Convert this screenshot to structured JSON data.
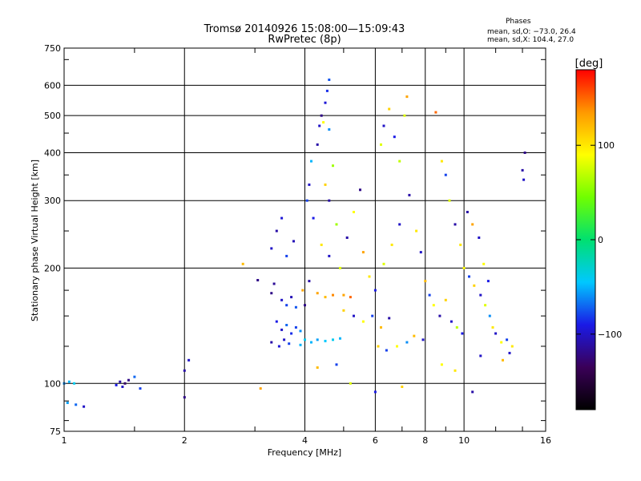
{
  "chart_data": {
    "type": "scatter",
    "title_line1": "Tromsø 20140926 15:08:00—15:09:43",
    "title_line2": "RwPretec (8p)",
    "xlabel": "Frequency [MHz]",
    "ylabel": "Stationary phase Virtual Height [km]",
    "x_scale": "log",
    "y_scale": "log",
    "xlim": [
      1,
      16
    ],
    "ylim": [
      75,
      750
    ],
    "x_ticks": [
      1,
      2,
      4,
      6,
      8,
      10,
      16
    ],
    "x_tick_labels": [
      "1",
      "2",
      "4",
      "6",
      "8",
      "10",
      "16"
    ],
    "y_ticks": [
      75,
      100,
      200,
      300,
      400,
      500,
      600,
      750
    ],
    "y_tick_labels": [
      "75",
      "100",
      "200",
      "300",
      "400",
      "500",
      "600",
      "750"
    ],
    "grid": true,
    "colorbar": {
      "label": "[deg]",
      "range": [
        -180,
        180
      ],
      "ticks": [
        100,
        0,
        -100
      ],
      "tick_labels": [
        "100",
        "0",
        "−100"
      ],
      "colors": [
        "#000000",
        "#3a0058",
        "#1a1ae6",
        "#00c8ff",
        "#00e070",
        "#70ff00",
        "#ffff00",
        "#ff9900",
        "#ff0000"
      ]
    },
    "phases": {
      "title": "Phases",
      "line_o": "mean, sd,O: −73.0, 26.4",
      "line_x": "mean, sd,X: 104.4, 27.0"
    },
    "series": [
      {
        "points": [
          [
            1.0,
            100,
            -60
          ],
          [
            1.03,
            101,
            -50
          ],
          [
            1.06,
            100,
            -40
          ],
          [
            1.02,
            89,
            -55
          ],
          [
            1.07,
            88,
            -70
          ],
          [
            1.12,
            87,
            -100
          ],
          [
            1.35,
            99,
            -90
          ],
          [
            1.38,
            101,
            -110
          ],
          [
            1.42,
            100,
            -130
          ],
          [
            1.45,
            102,
            -120
          ],
          [
            1.4,
            98,
            -100
          ],
          [
            1.5,
            104,
            -70
          ],
          [
            1.55,
            97,
            -80
          ],
          [
            2.0,
            108,
            -110
          ],
          [
            2.0,
            92,
            -120
          ],
          [
            2.05,
            115,
            -100
          ],
          [
            2.8,
            205,
            120
          ],
          [
            3.05,
            186,
            -120
          ],
          [
            3.3,
            172,
            -120
          ],
          [
            3.35,
            182,
            -115
          ],
          [
            3.5,
            165,
            -100
          ],
          [
            3.6,
            160,
            -80
          ],
          [
            3.7,
            168,
            -105
          ],
          [
            3.8,
            158,
            -75
          ],
          [
            3.4,
            145,
            -90
          ],
          [
            3.5,
            138,
            -100
          ],
          [
            3.6,
            142,
            -70
          ],
          [
            3.7,
            135,
            -85
          ],
          [
            3.8,
            140,
            -80
          ],
          [
            3.9,
            137,
            -60
          ],
          [
            3.3,
            128,
            -110
          ],
          [
            3.45,
            125,
            -95
          ],
          [
            3.55,
            130,
            -100
          ],
          [
            3.65,
            127,
            -80
          ],
          [
            3.9,
            126,
            -50
          ],
          [
            3.3,
            225,
            -100
          ],
          [
            3.4,
            250,
            -110
          ],
          [
            3.5,
            270,
            -95
          ],
          [
            3.6,
            215,
            -80
          ],
          [
            3.75,
            235,
            -105
          ],
          [
            3.95,
            175,
            130
          ],
          [
            4.0,
            160,
            -120
          ],
          [
            4.05,
            300,
            -80
          ],
          [
            4.1,
            330,
            -100
          ],
          [
            4.15,
            380,
            -50
          ],
          [
            4.2,
            270,
            -90
          ],
          [
            4.0,
            130,
            -40
          ],
          [
            4.15,
            128,
            -50
          ],
          [
            4.3,
            130,
            -55
          ],
          [
            4.5,
            129,
            -45
          ],
          [
            4.7,
            130,
            -40
          ],
          [
            4.9,
            131,
            -50
          ],
          [
            4.1,
            185,
            -110
          ],
          [
            4.3,
            172,
            130
          ],
          [
            4.5,
            168,
            120
          ],
          [
            4.7,
            170,
            140
          ],
          [
            5.0,
            170,
            130
          ],
          [
            5.2,
            168,
            150
          ],
          [
            4.3,
            420,
            -110
          ],
          [
            4.35,
            470,
            -100
          ],
          [
            4.4,
            500,
            -120
          ],
          [
            4.5,
            540,
            -95
          ],
          [
            4.55,
            580,
            -85
          ],
          [
            4.6,
            620,
            -75
          ],
          [
            4.45,
            480,
            90
          ],
          [
            4.6,
            460,
            -60
          ],
          [
            4.7,
            370,
            60
          ],
          [
            4.5,
            330,
            110
          ],
          [
            4.6,
            300,
            -110
          ],
          [
            4.8,
            260,
            60
          ],
          [
            4.4,
            230,
            100
          ],
          [
            4.6,
            215,
            -100
          ],
          [
            4.9,
            200,
            80
          ],
          [
            5.1,
            240,
            -110
          ],
          [
            5.3,
            280,
            90
          ],
          [
            5.5,
            320,
            -120
          ],
          [
            5.0,
            155,
            110
          ],
          [
            5.3,
            150,
            -100
          ],
          [
            5.6,
            145,
            90
          ],
          [
            5.9,
            150,
            -80
          ],
          [
            6.2,
            140,
            120
          ],
          [
            6.5,
            148,
            -110
          ],
          [
            5.6,
            220,
            130
          ],
          [
            5.8,
            190,
            100
          ],
          [
            6.0,
            175,
            -90
          ],
          [
            6.3,
            205,
            80
          ],
          [
            6.6,
            230,
            100
          ],
          [
            6.9,
            260,
            -100
          ],
          [
            6.1,
            125,
            110
          ],
          [
            6.4,
            122,
            -80
          ],
          [
            6.8,
            125,
            90
          ],
          [
            7.2,
            128,
            -60
          ],
          [
            7.5,
            133,
            120
          ],
          [
            7.9,
            130,
            -100
          ],
          [
            6.2,
            420,
            80
          ],
          [
            6.3,
            470,
            -100
          ],
          [
            6.5,
            520,
            110
          ],
          [
            6.7,
            440,
            -90
          ],
          [
            6.9,
            380,
            70
          ],
          [
            7.1,
            500,
            80
          ],
          [
            7.2,
            560,
            130
          ],
          [
            7.3,
            310,
            -110
          ],
          [
            7.6,
            250,
            100
          ],
          [
            7.8,
            220,
            -100
          ],
          [
            8.0,
            185,
            120
          ],
          [
            8.2,
            170,
            -80
          ],
          [
            8.4,
            160,
            90
          ],
          [
            8.7,
            150,
            -110
          ],
          [
            9.0,
            165,
            110
          ],
          [
            9.3,
            145,
            -100
          ],
          [
            9.6,
            140,
            70
          ],
          [
            9.9,
            135,
            -90
          ],
          [
            8.5,
            510,
            150
          ],
          [
            8.8,
            380,
            100
          ],
          [
            9.0,
            350,
            -80
          ],
          [
            9.2,
            300,
            80
          ],
          [
            9.5,
            260,
            -110
          ],
          [
            9.8,
            230,
            100
          ],
          [
            10.0,
            200,
            90
          ],
          [
            10.3,
            190,
            -80
          ],
          [
            10.6,
            180,
            110
          ],
          [
            11.0,
            170,
            -100
          ],
          [
            11.3,
            160,
            80
          ],
          [
            11.6,
            150,
            -60
          ],
          [
            10.2,
            280,
            -110
          ],
          [
            10.5,
            260,
            130
          ],
          [
            10.9,
            240,
            -100
          ],
          [
            11.2,
            205,
            90
          ],
          [
            11.5,
            185,
            -90
          ],
          [
            11.8,
            140,
            100
          ],
          [
            12.0,
            135,
            -100
          ],
          [
            12.4,
            128,
            90
          ],
          [
            12.8,
            130,
            -80
          ],
          [
            13.2,
            125,
            100
          ],
          [
            13.0,
            120,
            -100
          ],
          [
            14.0,
            360,
            -110
          ],
          [
            14.1,
            340,
            -100
          ],
          [
            14.2,
            400,
            -120
          ],
          [
            12.5,
            115,
            120
          ],
          [
            11.0,
            118,
            -100
          ],
          [
            9.5,
            108,
            100
          ],
          [
            7.0,
            98,
            110
          ],
          [
            5.2,
            100,
            80
          ],
          [
            6.0,
            95,
            -90
          ],
          [
            4.3,
            110,
            120
          ],
          [
            4.8,
            112,
            -80
          ],
          [
            3.1,
            97,
            130
          ],
          [
            8.8,
            112,
            90
          ],
          [
            10.5,
            95,
            -110
          ]
        ]
      }
    ]
  }
}
